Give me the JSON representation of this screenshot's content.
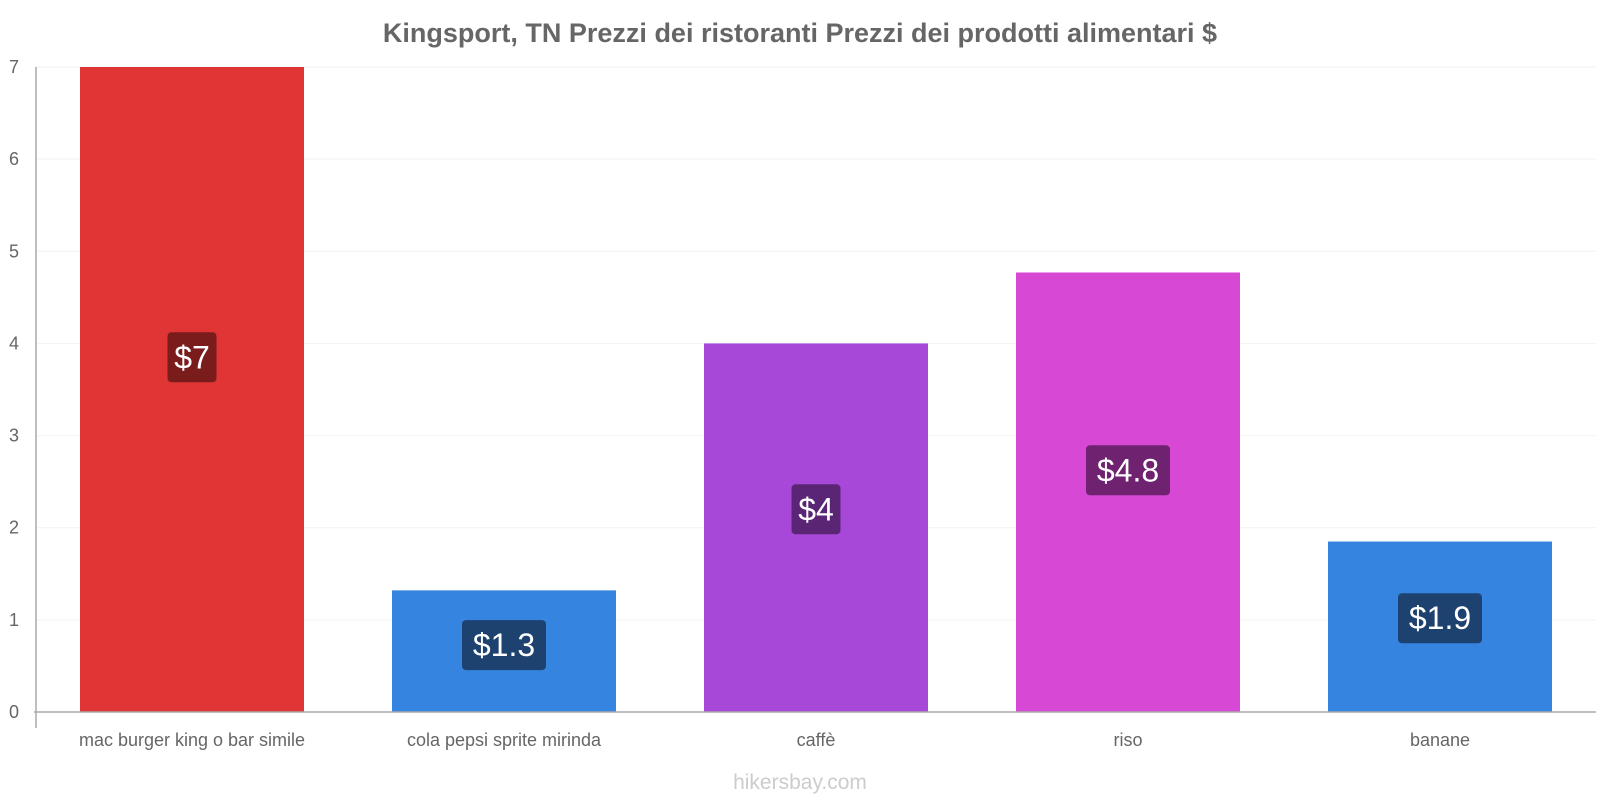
{
  "chart_data": {
    "type": "bar",
    "title": "Kingsport, TN Prezzi dei ristoranti Prezzi dei prodotti alimentari $",
    "categories": [
      "mac burger king o bar simile",
      "cola pepsi sprite mirinda",
      "caffè",
      "riso",
      "banane"
    ],
    "values": [
      7,
      1.32,
      4,
      4.77,
      1.85
    ],
    "value_labels": [
      "$7",
      "$1.3",
      "$4",
      "$4.8",
      "$1.9"
    ],
    "bar_colors": [
      "#e03535",
      "#3584e0",
      "#a748d8",
      "#d748d4",
      "#3584e0"
    ],
    "label_bg_colors": [
      "#7a1c1c",
      "#1e426f",
      "#5a2575",
      "#6e2270",
      "#1e426f"
    ],
    "ylim": [
      0,
      7
    ],
    "yticks": [
      "0",
      "1",
      "2",
      "3",
      "4",
      "5",
      "6",
      "7"
    ],
    "xlabel": "",
    "ylabel": "",
    "grid": true
  },
  "footer": {
    "source": "hikersbay.com"
  }
}
